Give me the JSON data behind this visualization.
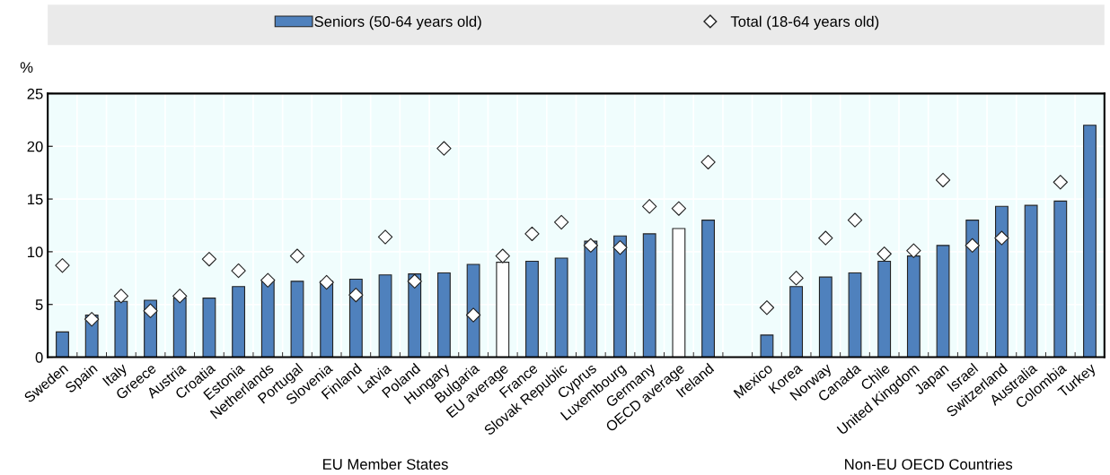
{
  "chart_data": {
    "type": "bar",
    "ylabel": "%",
    "categories": [
      "Sweden",
      "Spain",
      "Italy",
      "Greece",
      "Austria",
      "Croatia",
      "Estonia",
      "Netherlands",
      "Portugal",
      "Slovenia",
      "Finland",
      "Latvia",
      "Poland",
      "Hungary",
      "Bulgaria",
      "EU average",
      "France",
      "Slovak Republic",
      "Cyprus",
      "Luxembourg",
      "Germany",
      "OECD average",
      "Ireland",
      null,
      "Mexico",
      "Korea",
      "Norway",
      "Canada",
      "Chile",
      "United Kingdom",
      "Japan",
      "Israel",
      "Switzerland",
      "Australia",
      "Colombia",
      "Turkey"
    ],
    "series": [
      {
        "name": "Seniors (50-64 years old)",
        "color": "#4f81bd",
        "colors": [
          "#4f81bd",
          "#4f81bd",
          "#4f81bd",
          "#4f81bd",
          "#4f81bd",
          "#4f81bd",
          "#4f81bd",
          "#4f81bd",
          "#4f81bd",
          "#4f81bd",
          "#4f81bd",
          "#4f81bd",
          "#4f81bd",
          "#4f81bd",
          "#4f81bd",
          "#ffffff",
          "#4f81bd",
          "#4f81bd",
          "#4f81bd",
          "#4f81bd",
          "#4f81bd",
          "#ffffff",
          "#4f81bd",
          "#4f81bd",
          "#4f81bd",
          "#4f81bd",
          "#4f81bd",
          "#4f81bd",
          "#4f81bd",
          "#4f81bd",
          "#4f81bd",
          "#4f81bd",
          "#4f81bd",
          "#4f81bd",
          "#4f81bd",
          "#4f81bd"
        ],
        "values": [
          2.4,
          4.0,
          5.3,
          5.4,
          5.6,
          5.6,
          6.7,
          7.3,
          7.2,
          7.2,
          7.4,
          7.8,
          7.9,
          8.0,
          8.8,
          9.0,
          9.1,
          9.4,
          11.0,
          11.5,
          11.7,
          12.2,
          13.0,
          null,
          2.1,
          6.7,
          7.6,
          8.0,
          9.1,
          9.6,
          10.6,
          13.0,
          14.3,
          14.4,
          14.8,
          22.0
        ]
      },
      {
        "name": "Total (18-64 years old)",
        "type": "scatter",
        "marker": "diamond",
        "color": "#ffffff",
        "values": [
          8.7,
          3.6,
          5.8,
          4.4,
          5.8,
          9.3,
          8.2,
          7.3,
          9.6,
          7.1,
          5.9,
          11.4,
          7.2,
          19.8,
          4.0,
          9.6,
          11.7,
          12.8,
          10.6,
          10.4,
          14.3,
          14.1,
          18.5,
          null,
          4.7,
          7.5,
          11.3,
          13.0,
          9.8,
          10.1,
          16.8,
          10.6,
          11.3,
          null,
          16.6,
          null
        ]
      }
    ],
    "ylim": [
      0,
      25
    ],
    "yticks": [
      0,
      5,
      10,
      15,
      20,
      25
    ],
    "grid": true,
    "legend": "top",
    "annotations": [
      "EU Member States",
      "Non-EU OECD Countries"
    ]
  }
}
